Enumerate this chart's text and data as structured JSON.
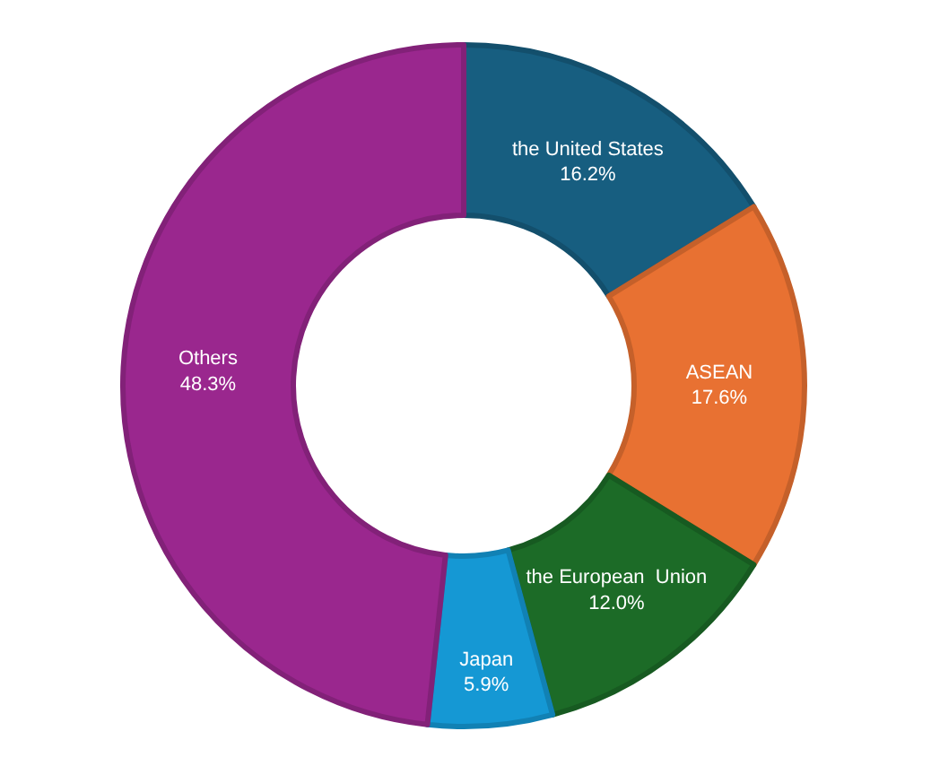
{
  "chart_data": {
    "type": "donut",
    "categories": [
      "the United States",
      "ASEAN",
      "the European  Union",
      "Japan",
      "Others"
    ],
    "values": [
      16.2,
      17.6,
      12.0,
      5.9,
      48.3
    ],
    "value_labels": [
      "16.2%",
      "17.6%",
      "12.0%",
      "5.9%",
      "48.3%"
    ],
    "colors": [
      "#175e80",
      "#e87132",
      "#1c6b27",
      "#1598d4",
      "#9a278e"
    ],
    "legend": false
  }
}
